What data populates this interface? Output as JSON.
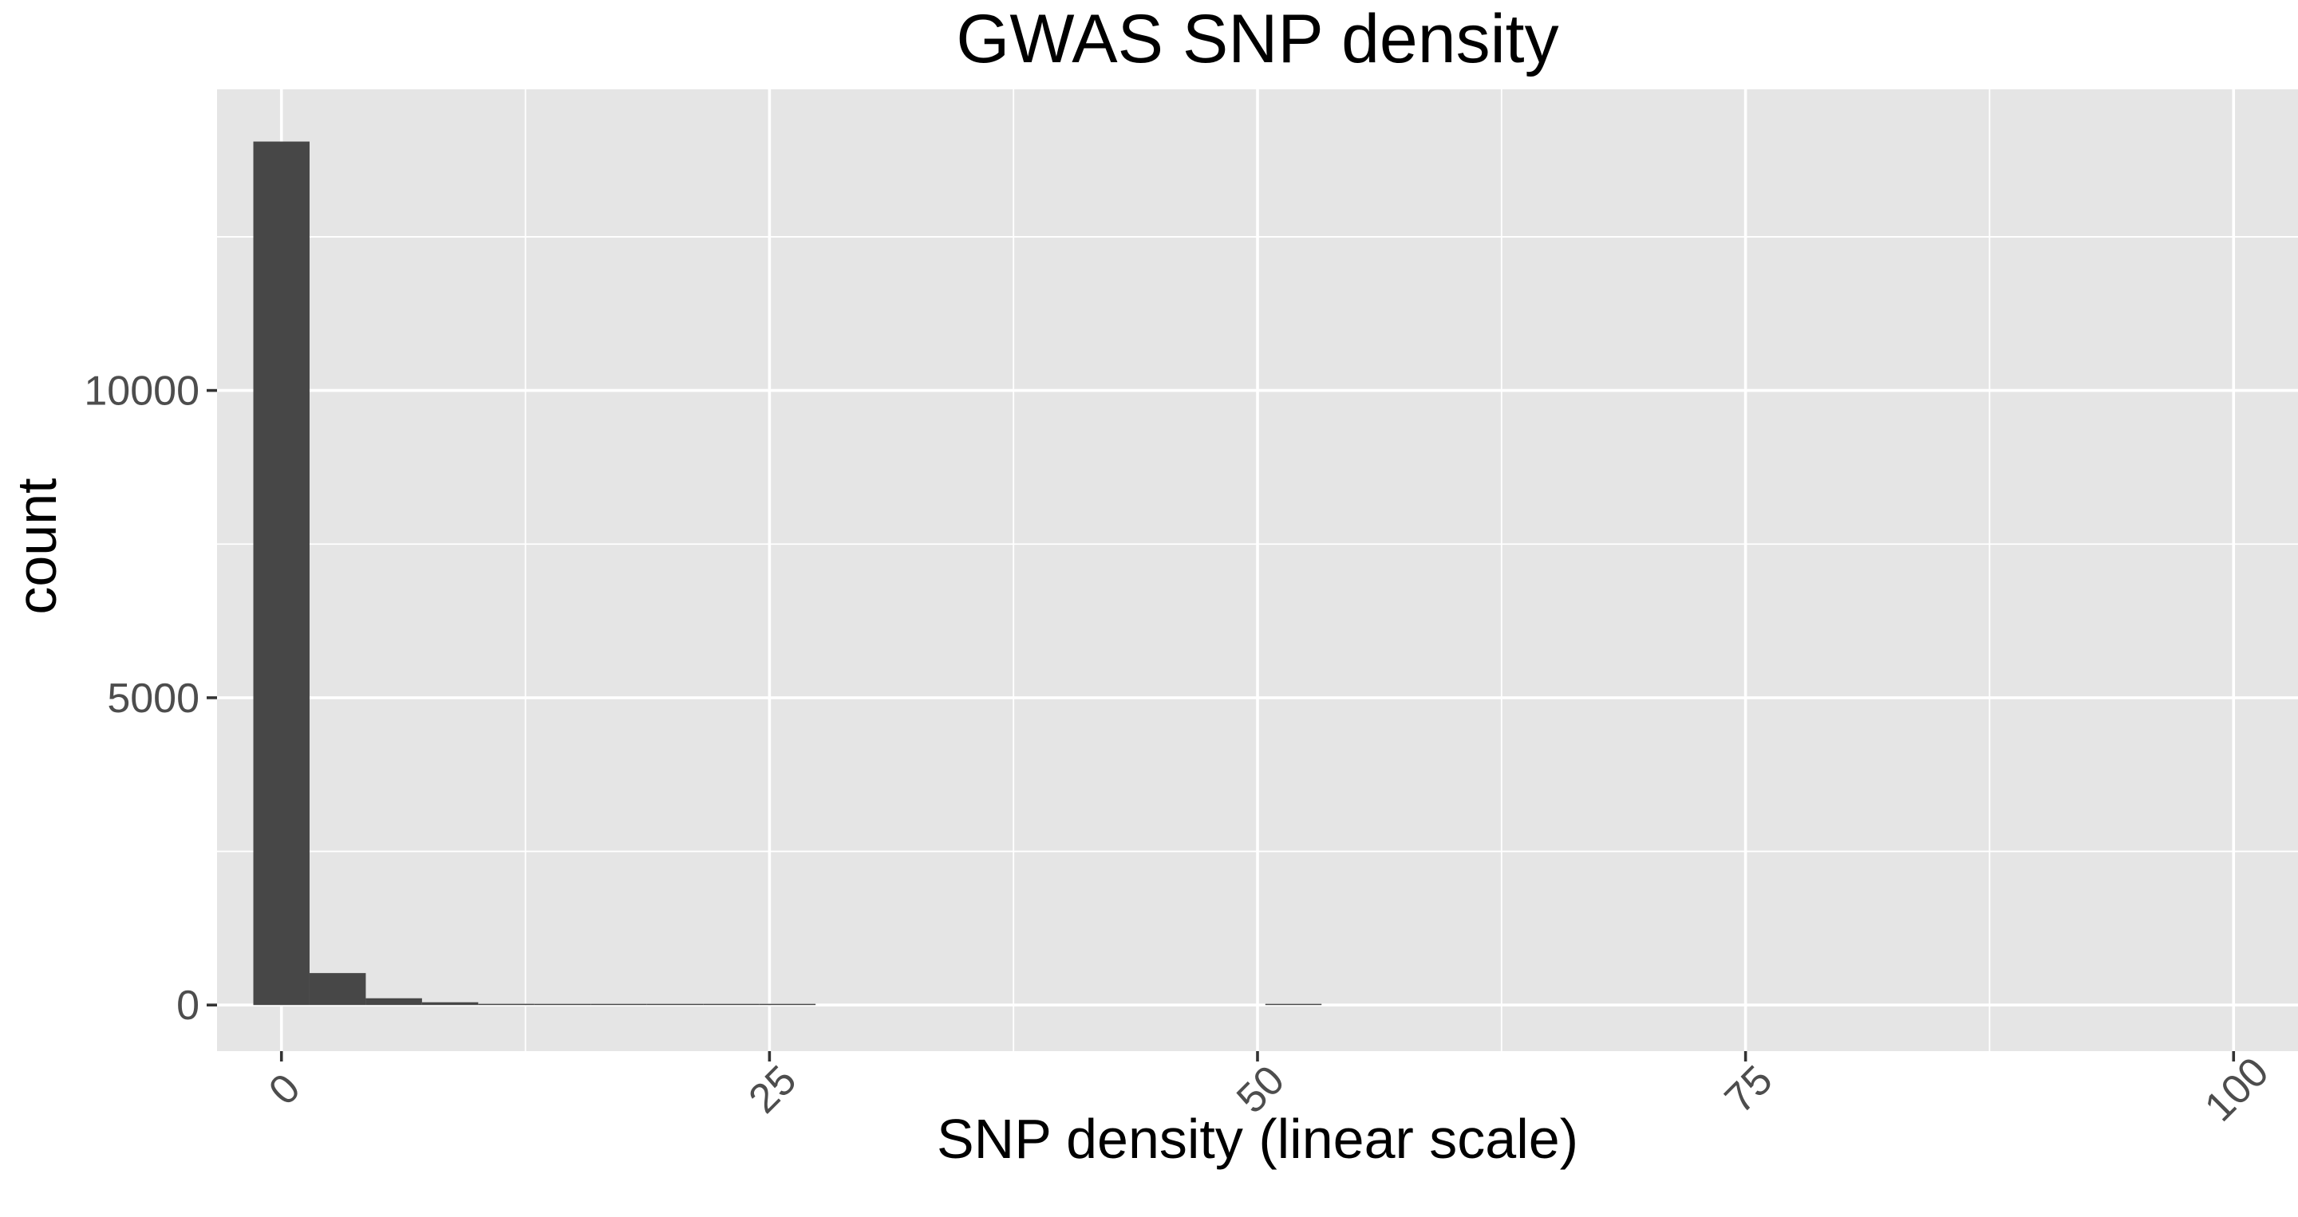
{
  "chart_data": {
    "type": "bar",
    "title": "GWAS SNP density",
    "xlabel": "SNP density (linear scale)",
    "ylabel": "count",
    "xlim": [
      -3.3,
      103.3
    ],
    "ylim": [
      -750,
      14900
    ],
    "x_ticks": [
      0,
      25,
      50,
      75,
      100
    ],
    "x_tick_labels": [
      "0",
      "25",
      "50",
      "75",
      "100"
    ],
    "x_minor_ticks": [
      12.5,
      37.5,
      62.5,
      87.5
    ],
    "y_ticks": [
      0,
      5000,
      10000
    ],
    "y_tick_labels": [
      "0",
      "5000",
      "10000"
    ],
    "y_minor_ticks": [
      2500,
      7500,
      12500
    ],
    "bin_width": 2.88,
    "bins": [
      {
        "x": 0,
        "count": 14050
      },
      {
        "x": 2.88,
        "count": 520
      },
      {
        "x": 5.76,
        "count": 110
      },
      {
        "x": 8.64,
        "count": 45
      },
      {
        "x": 11.52,
        "count": 20
      },
      {
        "x": 14.4,
        "count": 10
      },
      {
        "x": 17.28,
        "count": 6
      },
      {
        "x": 20.16,
        "count": 4
      },
      {
        "x": 23.04,
        "count": 3
      },
      {
        "x": 25.92,
        "count": 2
      },
      {
        "x": 51.84,
        "count": 8
      }
    ],
    "grid": true,
    "panel_color": "#e5e5e5",
    "grid_color": "#ffffff",
    "bar_color": "#474747"
  }
}
